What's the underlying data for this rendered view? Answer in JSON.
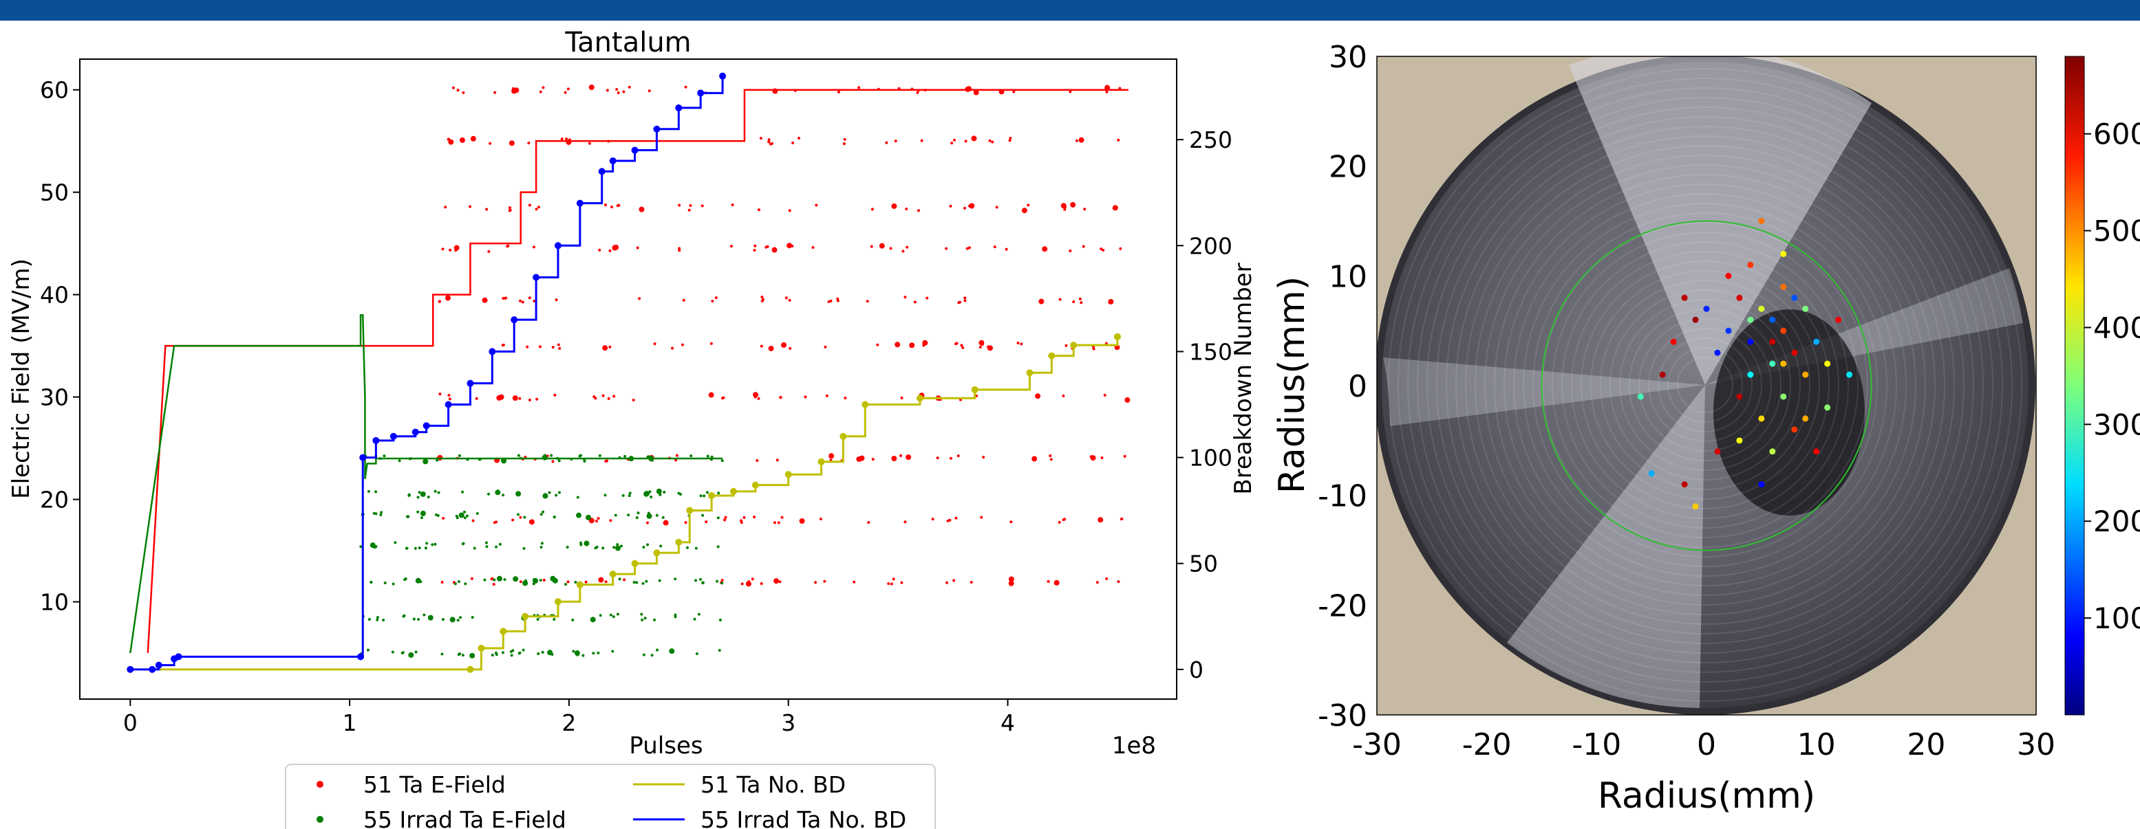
{
  "colors": {
    "top_bar": "#0b4f94",
    "e_field_51": "#ff0000",
    "e_field_55": "#008000",
    "bd_51": "#bfbf00",
    "bd_55": "#0000ff",
    "ring": "#2fbf2f"
  },
  "chart_data": [
    {
      "type": "line",
      "title": "Tantalum",
      "xlabel": "Pulses",
      "x_multiplier_label": "1e8",
      "ylabel": "Electric Field (MV/m)",
      "y2label": "Breakdown Number",
      "xlim": [
        -0.23,
        4.77
      ],
      "ylim": [
        0.5,
        63
      ],
      "y2lim": [
        -14,
        288
      ],
      "x_ticks": [
        0,
        1,
        2,
        3,
        4
      ],
      "y_ticks": [
        10,
        20,
        30,
        40,
        50,
        60
      ],
      "y2_ticks": [
        0,
        50,
        100,
        150,
        200,
        250
      ],
      "grid": false,
      "legend_position": "bottom-center",
      "legend": [
        "51 Ta E-Field",
        "55 Irrad Ta E-Field",
        "51 Ta No. BD",
        "55 Irrad Ta No. BD"
      ],
      "series": [
        {
          "name": "51 Ta E-Field",
          "axis": "left",
          "style": "step-line",
          "x": [
            0.08,
            0.16,
            0.16,
            0.18,
            0.18,
            1.38,
            1.38,
            1.55,
            1.55,
            1.78,
            1.78,
            1.85,
            1.85,
            2.25,
            2.25,
            2.8,
            2.8,
            4.55
          ],
          "y": [
            5,
            35,
            35,
            35,
            35,
            35,
            40,
            40,
            45,
            45,
            50,
            50,
            55,
            55,
            55,
            55,
            60,
            60
          ],
          "breakdown_levels": [
            12,
            18,
            24,
            30,
            35,
            39.5,
            44.5,
            48.5,
            55,
            60
          ]
        },
        {
          "name": "55 Irrad Ta E-Field",
          "axis": "left",
          "style": "step-line",
          "x": [
            0.0,
            0.2,
            1.05,
            1.05,
            1.06,
            1.07,
            1.07,
            1.08,
            1.12,
            1.12,
            1.35,
            1.35,
            2.7
          ],
          "y": [
            5,
            35,
            35,
            38,
            38,
            30,
            22,
            23.5,
            23.5,
            24,
            24,
            24,
            24
          ],
          "breakdown_levels": [
            5,
            8.5,
            12,
            15.5,
            18.5,
            20.5,
            24
          ]
        },
        {
          "name": "51 Ta No. BD",
          "axis": "right",
          "x": [
            0.0,
            1.55,
            1.6,
            1.7,
            1.8,
            1.95,
            2.05,
            2.2,
            2.3,
            2.4,
            2.5,
            2.55,
            2.65,
            2.75,
            2.85,
            3.0,
            3.15,
            3.25,
            3.35,
            3.6,
            3.85,
            4.1,
            4.2,
            4.3,
            4.5
          ],
          "y": [
            0,
            0,
            10,
            18,
            25,
            32,
            40,
            45,
            50,
            55,
            60,
            75,
            82,
            84,
            87,
            92,
            98,
            110,
            125,
            128,
            132,
            140,
            148,
            153,
            157
          ]
        },
        {
          "name": "55 Irrad Ta No. BD",
          "axis": "right",
          "x": [
            0.0,
            0.1,
            0.13,
            0.2,
            0.22,
            1.05,
            1.06,
            1.12,
            1.2,
            1.3,
            1.35,
            1.45,
            1.55,
            1.65,
            1.75,
            1.85,
            1.95,
            2.05,
            2.15,
            2.2,
            2.3,
            2.4,
            2.5,
            2.6,
            2.7
          ],
          "y": [
            0,
            0,
            2,
            5,
            6,
            6,
            100,
            108,
            110,
            112,
            115,
            125,
            135,
            150,
            165,
            185,
            200,
            220,
            235,
            240,
            245,
            255,
            265,
            272,
            280
          ]
        }
      ]
    },
    {
      "type": "scatter",
      "xlabel": "Radius(mm)",
      "ylabel": "Radius(mm)",
      "xlim": [
        -30,
        30
      ],
      "ylim": [
        -30,
        30
      ],
      "x_ticks": [
        -30,
        -20,
        -10,
        0,
        10,
        20,
        30
      ],
      "y_ticks": [
        -30,
        -20,
        -10,
        0,
        10,
        20,
        30
      ],
      "colorbar_ticks": [
        "100",
        "200",
        "300",
        "400",
        "500",
        "600"
      ],
      "colorbar_range": [
        0,
        680
      ],
      "background": "photo of circular tantalum cathode",
      "ring_radius_mm": 15,
      "points": [
        {
          "x": 6,
          "y": 6,
          "v": 150
        },
        {
          "x": 7,
          "y": 5,
          "v": 550
        },
        {
          "x": 5,
          "y": 7,
          "v": 400
        },
        {
          "x": 8,
          "y": 3,
          "v": 620
        },
        {
          "x": 6,
          "y": 2,
          "v": 300
        },
        {
          "x": 4,
          "y": 4,
          "v": 90
        },
        {
          "x": 9,
          "y": 1,
          "v": 480
        },
        {
          "x": 7,
          "y": -1,
          "v": 350
        },
        {
          "x": 10,
          "y": 4,
          "v": 200
        },
        {
          "x": 3,
          "y": 8,
          "v": 620
        },
        {
          "x": 5,
          "y": -3,
          "v": 450
        },
        {
          "x": 8,
          "y": -4,
          "v": 560
        },
        {
          "x": 11,
          "y": 2,
          "v": 420
        },
        {
          "x": 4,
          "y": 1,
          "v": 250
        },
        {
          "x": 6,
          "y": -6,
          "v": 380
        },
        {
          "x": 2,
          "y": 5,
          "v": 120
        },
        {
          "x": 12,
          "y": 6,
          "v": 600
        },
        {
          "x": 9,
          "y": 7,
          "v": 340
        },
        {
          "x": 7,
          "y": 9,
          "v": 520
        },
        {
          "x": 3,
          "y": -1,
          "v": 640
        },
        {
          "x": 1,
          "y": 3,
          "v": 100
        },
        {
          "x": -1,
          "y": 6,
          "v": 660
        },
        {
          "x": -3,
          "y": 4,
          "v": 600
        },
        {
          "x": -2,
          "y": 8,
          "v": 640
        },
        {
          "x": 0,
          "y": 7,
          "v": 110
        },
        {
          "x": 2,
          "y": 10,
          "v": 600
        },
        {
          "x": 4,
          "y": 11,
          "v": 560
        },
        {
          "x": -4,
          "y": 1,
          "v": 650
        },
        {
          "x": -6,
          "y": -1,
          "v": 300
        },
        {
          "x": -5,
          "y": -8,
          "v": 200
        },
        {
          "x": -2,
          "y": -9,
          "v": 640
        },
        {
          "x": 1,
          "y": -6,
          "v": 620
        },
        {
          "x": 3,
          "y": -5,
          "v": 420
        },
        {
          "x": 5,
          "y": -9,
          "v": 90
        },
        {
          "x": 9,
          "y": -3,
          "v": 480
        },
        {
          "x": 11,
          "y": -2,
          "v": 350
        },
        {
          "x": 13,
          "y": 1,
          "v": 240
        },
        {
          "x": 10,
          "y": -6,
          "v": 600
        },
        {
          "x": 7,
          "y": 12,
          "v": 430
        },
        {
          "x": 5,
          "y": 15,
          "v": 520
        },
        {
          "x": -1,
          "y": -11,
          "v": 460
        },
        {
          "x": 6,
          "y": 4,
          "v": 630
        },
        {
          "x": 8,
          "y": 8,
          "v": 140
        },
        {
          "x": 4,
          "y": 6,
          "v": 330
        },
        {
          "x": 7,
          "y": 2,
          "v": 470
        }
      ]
    }
  ]
}
